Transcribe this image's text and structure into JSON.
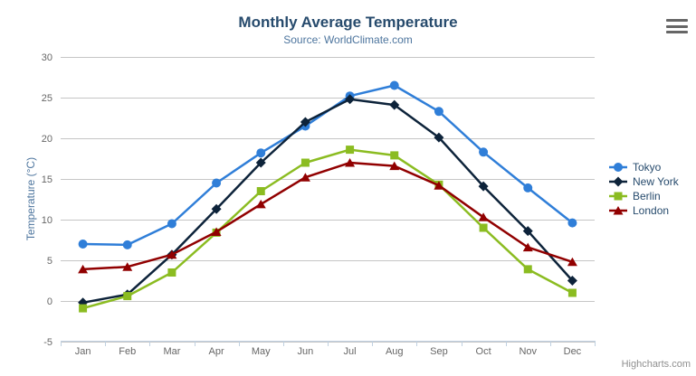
{
  "chart_data": {
    "type": "line",
    "title": "Monthly Average Temperature",
    "subtitle": "Source: WorldClimate.com",
    "categories": [
      "Jan",
      "Feb",
      "Mar",
      "Apr",
      "May",
      "Jun",
      "Jul",
      "Aug",
      "Sep",
      "Oct",
      "Nov",
      "Dec"
    ],
    "xlabel": "",
    "ylabel": "Temperature (°C)",
    "ylim": [
      -5,
      30
    ],
    "yticks": [
      -5,
      0,
      5,
      10,
      15,
      20,
      25,
      30
    ],
    "grid": true,
    "legend_position": "right",
    "series": [
      {
        "name": "Tokyo",
        "color": "#2f7ed8",
        "marker": "circle",
        "values": [
          7.0,
          6.9,
          9.5,
          14.5,
          18.2,
          21.5,
          25.2,
          26.5,
          23.3,
          18.3,
          13.9,
          9.6
        ]
      },
      {
        "name": "New York",
        "color": "#0d233a",
        "marker": "diamond",
        "values": [
          -0.2,
          0.8,
          5.7,
          11.3,
          17.0,
          22.0,
          24.8,
          24.1,
          20.1,
          14.1,
          8.6,
          2.5
        ]
      },
      {
        "name": "Berlin",
        "color": "#8bbc21",
        "marker": "square",
        "values": [
          -0.9,
          0.6,
          3.5,
          8.4,
          13.5,
          17.0,
          18.6,
          17.9,
          14.3,
          9.0,
          3.9,
          1.0
        ]
      },
      {
        "name": "London",
        "color": "#910000",
        "marker": "triangle",
        "values": [
          3.9,
          4.2,
          5.7,
          8.5,
          11.9,
          15.2,
          17.0,
          16.6,
          14.2,
          10.3,
          6.6,
          4.8
        ]
      }
    ]
  },
  "credits": "Highcharts.com",
  "icons": {
    "export_menu": "hamburger-menu-icon"
  },
  "colors": {
    "title": "#274b6d",
    "subtitle": "#4d759e",
    "axis_title": "#4d759e",
    "axis_labels": "#666666",
    "gridline": "#c6c6c6",
    "axis_line": "#c0d0e0",
    "legend_text": "#274b6d",
    "credits_text": "#8f8f8f",
    "background": "#ffffff"
  }
}
